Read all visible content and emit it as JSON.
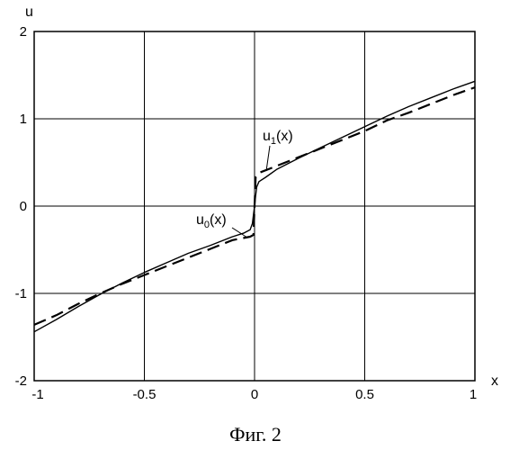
{
  "chart_data": {
    "type": "line",
    "xlabel": "x",
    "ylabel": "u",
    "xlim": [
      -1,
      1
    ],
    "ylim": [
      -2,
      2
    ],
    "x_ticks": [
      -1,
      -0.5,
      0,
      0.5,
      1
    ],
    "y_ticks": [
      -2,
      -1,
      0,
      1,
      2
    ],
    "x_tick_labels": [
      "-1",
      "-0.5",
      "0",
      "0.5",
      "1"
    ],
    "y_tick_labels": [
      "-2",
      "-1",
      "0",
      "1",
      "2"
    ],
    "grid": true,
    "caption": "Фиг. 2",
    "series": [
      {
        "name": "u1(x)",
        "style": "solid",
        "color": "#000000",
        "x": [
          -1,
          -0.9,
          -0.8,
          -0.7,
          -0.6,
          -0.5,
          -0.4,
          -0.3,
          -0.2,
          -0.1,
          -0.05,
          -0.02,
          -0.01,
          -0.005,
          0,
          0.005,
          0.01,
          0.02,
          0.05,
          0.1,
          0.2,
          0.3,
          0.4,
          0.5,
          0.6,
          0.7,
          0.8,
          0.9,
          1
        ],
        "y": [
          -1.44,
          -1.3,
          -1.15,
          -1.01,
          -0.88,
          -0.76,
          -0.65,
          -0.54,
          -0.45,
          -0.35,
          -0.31,
          -0.27,
          -0.2,
          -0.1,
          0,
          0.12,
          0.22,
          0.28,
          0.33,
          0.42,
          0.55,
          0.67,
          0.79,
          0.91,
          1.03,
          1.14,
          1.24,
          1.34,
          1.43
        ]
      },
      {
        "name": "u0(x)",
        "style": "dashed",
        "color": "#000000",
        "x": [
          -1,
          -0.9,
          -0.8,
          -0.7,
          -0.6,
          -0.5,
          -0.4,
          -0.3,
          -0.2,
          -0.1,
          -0.02,
          -0.005,
          0.005,
          0.02,
          0.1,
          0.2,
          0.3,
          0.4,
          0.5,
          0.6,
          0.7,
          0.8,
          0.9,
          1
        ],
        "y": [
          -1.36,
          -1.25,
          -1.12,
          -1.0,
          -0.89,
          -0.79,
          -0.69,
          -0.59,
          -0.49,
          -0.39,
          -0.35,
          -0.33,
          0.33,
          0.38,
          0.46,
          0.56,
          0.66,
          0.76,
          0.86,
          0.98,
          1.07,
          1.17,
          1.27,
          1.36
        ]
      }
    ],
    "annotations": [
      {
        "series": "u1(x)",
        "label_main": "u",
        "label_sub": "1",
        "label_tail": "(x)",
        "x": 0.03,
        "y": 0.62
      },
      {
        "series": "u0(x)",
        "label_main": "u",
        "label_sub": "0",
        "label_tail": "(x)",
        "x": -0.02,
        "y": -0.28
      }
    ]
  }
}
